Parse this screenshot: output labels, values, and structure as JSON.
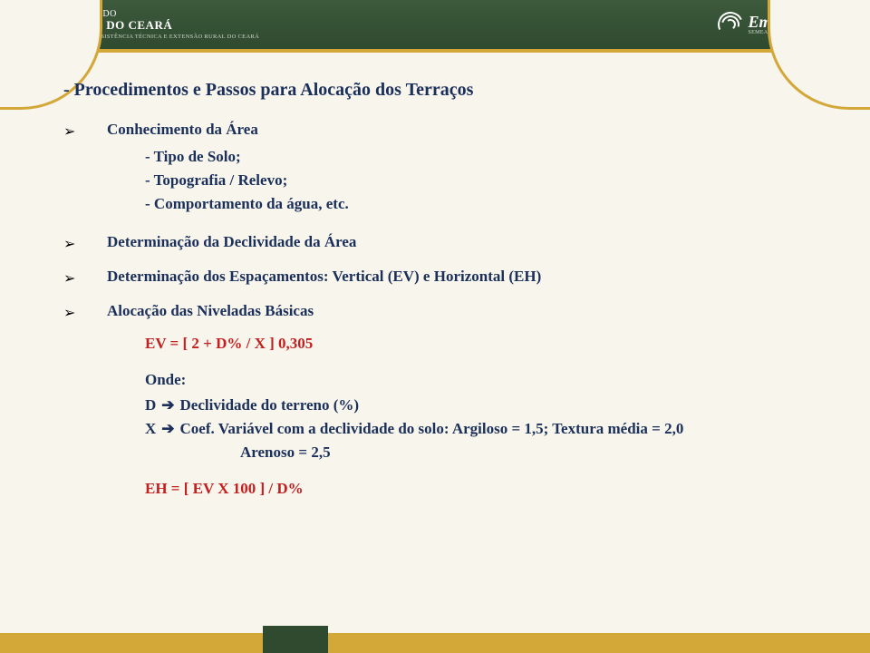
{
  "header": {
    "gov_line1": "GOVERNO DO",
    "gov_line2": "ESTADO DO CEARÁ",
    "gov_line3": "EMPRESA DE ASSISTÊNCIA TÉCNICA E EXTENSÃO RURAL DO CEARÁ",
    "brand_name": "Ematerce",
    "brand_tag": "SEMEANDO TECNOLOGIA NO CAMPO"
  },
  "title": "- Procedimentos e Passos para Alocação dos Terraços",
  "bullets": {
    "b1": "Conhecimento da Área",
    "b1_subs": [
      "- Tipo de Solo;",
      "- Topografia / Relevo;",
      "- Comportamento da água, etc."
    ],
    "b2": "Determinação da Declividade da Área",
    "b3": "Determinação dos Espaçamentos: Vertical (EV) e Horizontal (EH)",
    "b4": "Alocação das Niveladas Básicas"
  },
  "formulas": {
    "ev": "EV = [ 2 + D% / X ] 0,305",
    "onde": "Onde:",
    "d_var": "D",
    "d_desc": "Declividade do terreno (%)",
    "x_var": "X",
    "x_desc": "Coef. Variável com a declividade do solo: Argiloso = 1,5; Textura média = 2,0",
    "x_cont": "Arenoso = 2,5",
    "eh": "EH = [ EV X 100 ] / D%"
  },
  "colors": {
    "title": "#1a2f5a",
    "formula": "#c41e1e",
    "accent_gold": "#d4a838",
    "accent_green": "#2f4a2f",
    "background": "#f8f5ed"
  }
}
